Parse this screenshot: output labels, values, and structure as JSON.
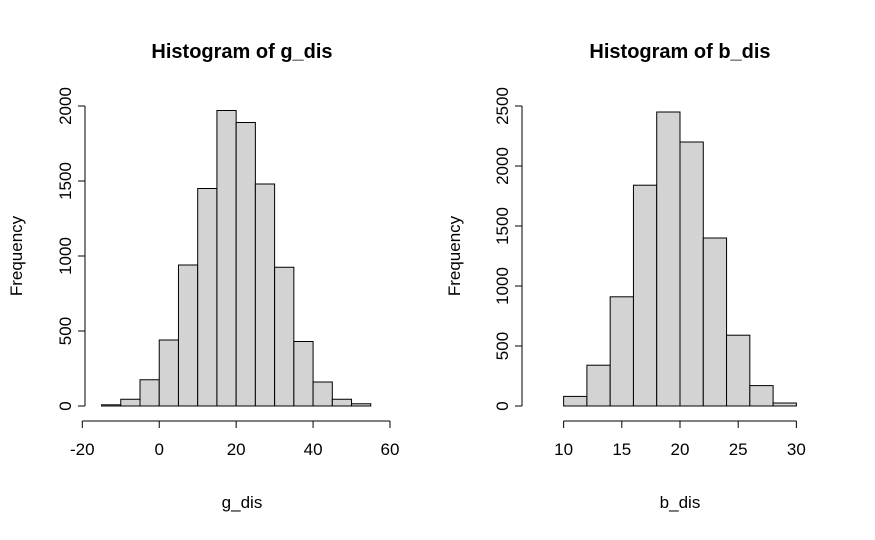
{
  "chart_data": [
    {
      "type": "histogram",
      "title": "Histogram of g_dis",
      "xlabel": "g_dis",
      "ylabel": "Frequency",
      "bins": [
        {
          "start": -15,
          "end": -10,
          "count": 8
        },
        {
          "start": -10,
          "end": -5,
          "count": 45
        },
        {
          "start": -5,
          "end": 0,
          "count": 175
        },
        {
          "start": 0,
          "end": 5,
          "count": 440
        },
        {
          "start": 5,
          "end": 10,
          "count": 940
        },
        {
          "start": 10,
          "end": 15,
          "count": 1450
        },
        {
          "start": 15,
          "end": 20,
          "count": 1970
        },
        {
          "start": 20,
          "end": 25,
          "count": 1890
        },
        {
          "start": 25,
          "end": 30,
          "count": 1480
        },
        {
          "start": 30,
          "end": 35,
          "count": 925
        },
        {
          "start": 35,
          "end": 40,
          "count": 430
        },
        {
          "start": 40,
          "end": 45,
          "count": 160
        },
        {
          "start": 45,
          "end": 50,
          "count": 45
        },
        {
          "start": 50,
          "end": 55,
          "count": 15
        }
      ],
      "xlim": [
        -18,
        60
      ],
      "ylim": [
        0,
        2000
      ],
      "xticks": [
        -20,
        0,
        20,
        40,
        60
      ],
      "xtick_labels": [
        "-20",
        "0",
        "20",
        "40",
        "60"
      ],
      "yticks": [
        0,
        500,
        1000,
        1500,
        2000
      ],
      "ytick_labels": [
        "0",
        "500",
        "1000",
        "1500",
        "2000"
      ],
      "grid": false,
      "bar_color": "#d3d3d3"
    },
    {
      "type": "histogram",
      "title": "Histogram of b_dis",
      "xlabel": "b_dis",
      "ylabel": "Frequency",
      "bins": [
        {
          "start": 10,
          "end": 12,
          "count": 80
        },
        {
          "start": 12,
          "end": 14,
          "count": 340
        },
        {
          "start": 14,
          "end": 16,
          "count": 910
        },
        {
          "start": 16,
          "end": 18,
          "count": 1840
        },
        {
          "start": 18,
          "end": 20,
          "count": 2450
        },
        {
          "start": 20,
          "end": 22,
          "count": 2200
        },
        {
          "start": 22,
          "end": 24,
          "count": 1400
        },
        {
          "start": 24,
          "end": 26,
          "count": 590
        },
        {
          "start": 26,
          "end": 28,
          "count": 170
        },
        {
          "start": 28,
          "end": 30,
          "count": 25
        }
      ],
      "xlim": [
        8.4,
        31.6
      ],
      "ylim": [
        0,
        2500
      ],
      "xticks": [
        10,
        15,
        20,
        25,
        30
      ],
      "xtick_labels": [
        "10",
        "15",
        "20",
        "25",
        "30"
      ],
      "yticks": [
        0,
        500,
        1000,
        1500,
        2000,
        2500
      ],
      "ytick_labels": [
        "0",
        "500",
        "1000",
        "1500",
        "2000",
        "2500"
      ],
      "grid": false,
      "bar_color": "#d3d3d3"
    }
  ]
}
